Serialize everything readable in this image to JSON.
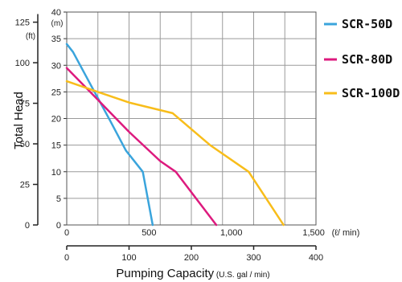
{
  "chart_data": {
    "type": "line",
    "ylabel": "Total Head",
    "y_unit_ft": "(ft)",
    "y_unit_m": "(m)",
    "y_ft_ticks": [
      "0",
      "25",
      "50",
      "75",
      "100",
      "125"
    ],
    "y_m_ticks": [
      "0",
      "5",
      "10",
      "15",
      "20",
      "25",
      "30",
      "35",
      "40"
    ],
    "y_m_range": [
      0,
      40
    ],
    "x_top_ticks": [
      {
        "value": 0,
        "label": "0"
      },
      {
        "value": 500,
        "label": "500"
      },
      {
        "value": 1000,
        "label": "1,000"
      },
      {
        "value": 1500,
        "label": "1,500"
      }
    ],
    "x_top_unit": "(ℓ/ min)",
    "x_bottom_ticks": [
      "0",
      "100",
      "200",
      "300",
      "400"
    ],
    "x_bottom_range": [
      0,
      400
    ],
    "xlabel": "Pumping Capacity",
    "xlabel_unit": "(U.S. gal / min)",
    "grid": true,
    "legend_position": "right",
    "series": [
      {
        "name": "SCR-50D",
        "color": "#3aa4dc",
        "points": [
          [
            0,
            34
          ],
          [
            10,
            32.5
          ],
          [
            40,
            26
          ],
          [
            70,
            19.5
          ],
          [
            95,
            14
          ],
          [
            122,
            10
          ],
          [
            138,
            0
          ]
        ]
      },
      {
        "name": "SCR-80D",
        "color": "#dd1a7e",
        "points": [
          [
            0,
            29.5
          ],
          [
            50,
            23.5
          ],
          [
            100,
            17.5
          ],
          [
            150,
            12
          ],
          [
            175,
            10
          ],
          [
            240,
            0
          ]
        ]
      },
      {
        "name": "SCR-100D",
        "color": "#f8bd1a",
        "points": [
          [
            0,
            27
          ],
          [
            50,
            25
          ],
          [
            100,
            23
          ],
          [
            170,
            21
          ],
          [
            230,
            15
          ],
          [
            292,
            10
          ],
          [
            348,
            0
          ]
        ]
      }
    ]
  }
}
